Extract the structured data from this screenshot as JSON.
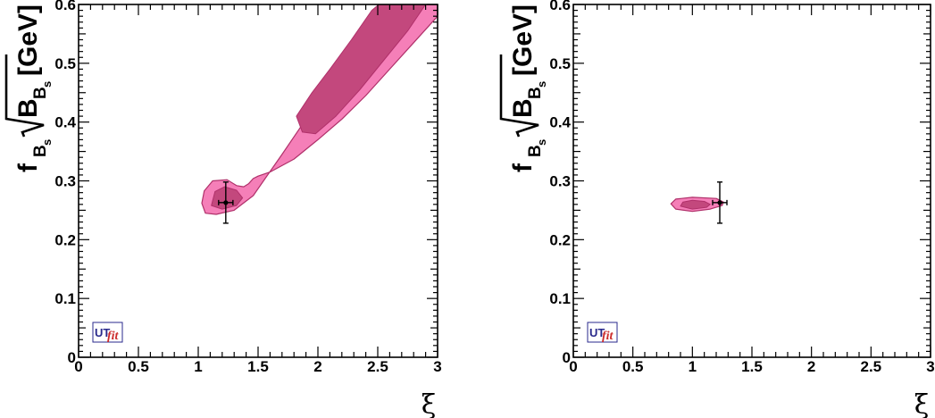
{
  "chart_data": [
    {
      "type": "contour",
      "xlabel": "ξ",
      "ylabel": {
        "main": "f",
        "sub": "B",
        "subsub": "s",
        "root": "B",
        "root_sub": "B",
        "root_subsub": "s",
        "unit": "[GeV]"
      },
      "xlim": [
        0,
        3
      ],
      "ylim": [
        0,
        0.6
      ],
      "x_ticks": [
        "0",
        "0.5",
        "1",
        "1.5",
        "2",
        "2.5",
        "3"
      ],
      "y_ticks": [
        "0",
        "0.1",
        "0.2",
        "0.3",
        "0.4",
        "0.5",
        "0.6"
      ],
      "logo": {
        "ut": "UT",
        "fit": "fit"
      },
      "colors": {
        "region_68": "#c3487d",
        "region_95": "#f57fb8",
        "outline": "#b0306a"
      },
      "regions": {
        "outer_95": [
          [
            1.06,
            0.245
          ],
          [
            1.15,
            0.243
          ],
          [
            1.3,
            0.25
          ],
          [
            1.46,
            0.275
          ],
          [
            1.58,
            0.31
          ],
          [
            1.7,
            0.345
          ],
          [
            1.85,
            0.39
          ],
          [
            2.0,
            0.435
          ],
          [
            2.2,
            0.49
          ],
          [
            2.4,
            0.54
          ],
          [
            2.62,
            0.6
          ],
          [
            3.0,
            0.6
          ],
          [
            3.0,
            0.58
          ],
          [
            2.8,
            0.535
          ],
          [
            2.6,
            0.49
          ],
          [
            2.4,
            0.445
          ],
          [
            2.2,
            0.405
          ],
          [
            2.0,
            0.37
          ],
          [
            1.8,
            0.337
          ],
          [
            1.6,
            0.315
          ],
          [
            1.5,
            0.308
          ],
          [
            1.46,
            0.304
          ],
          [
            1.42,
            0.295
          ],
          [
            1.38,
            0.29
          ],
          [
            1.32,
            0.292
          ],
          [
            1.24,
            0.302
          ],
          [
            1.12,
            0.3
          ],
          [
            1.05,
            0.283
          ],
          [
            1.03,
            0.262
          ]
        ],
        "inner_68": [
          [
            1.11,
            0.258
          ],
          [
            1.2,
            0.252
          ],
          [
            1.32,
            0.258
          ],
          [
            1.37,
            0.271
          ],
          [
            1.32,
            0.284
          ],
          [
            1.22,
            0.29
          ],
          [
            1.14,
            0.282
          ]
        ],
        "inner_68_band": [
          [
            1.82,
            0.41
          ],
          [
            1.95,
            0.45
          ],
          [
            2.1,
            0.49
          ],
          [
            2.28,
            0.54
          ],
          [
            2.45,
            0.59
          ],
          [
            2.51,
            0.6
          ],
          [
            2.9,
            0.6
          ],
          [
            2.75,
            0.555
          ],
          [
            2.55,
            0.505
          ],
          [
            2.35,
            0.455
          ],
          [
            2.15,
            0.41
          ],
          [
            1.98,
            0.38
          ],
          [
            1.87,
            0.383
          ]
        ]
      },
      "point": {
        "x": 1.23,
        "y": 0.263,
        "xerr": 0.06,
        "yerr": 0.035
      }
    },
    {
      "type": "contour",
      "xlabel": "ξ",
      "ylabel": {
        "main": "f",
        "sub": "B",
        "subsub": "s",
        "root": "B",
        "root_sub": "B",
        "root_subsub": "s",
        "unit": "[GeV]"
      },
      "xlim": [
        0,
        3
      ],
      "ylim": [
        0,
        0.6
      ],
      "x_ticks": [
        "0",
        "0.5",
        "1",
        "1.5",
        "2",
        "2.5",
        "3"
      ],
      "y_ticks": [
        "0",
        "0.1",
        "0.2",
        "0.3",
        "0.4",
        "0.5",
        "0.6"
      ],
      "logo": {
        "ut": "UT",
        "fit": "fit"
      },
      "colors": {
        "region_68": "#c3487d",
        "region_95": "#f57fb8",
        "outline": "#b0306a"
      },
      "regions": {
        "outer_95": [
          [
            0.82,
            0.261
          ],
          [
            0.86,
            0.252
          ],
          [
            1.0,
            0.248
          ],
          [
            1.15,
            0.252
          ],
          [
            1.25,
            0.258
          ],
          [
            1.26,
            0.264
          ],
          [
            1.2,
            0.27
          ],
          [
            1.0,
            0.272
          ],
          [
            0.86,
            0.269
          ]
        ],
        "inner_68": [
          [
            0.9,
            0.257
          ],
          [
            1.0,
            0.252
          ],
          [
            1.12,
            0.255
          ],
          [
            1.15,
            0.26
          ],
          [
            1.1,
            0.265
          ],
          [
            1.0,
            0.267
          ],
          [
            0.92,
            0.264
          ]
        ]
      },
      "point": {
        "x": 1.23,
        "y": 0.263,
        "xerr": 0.06,
        "yerr": 0.035
      }
    }
  ]
}
